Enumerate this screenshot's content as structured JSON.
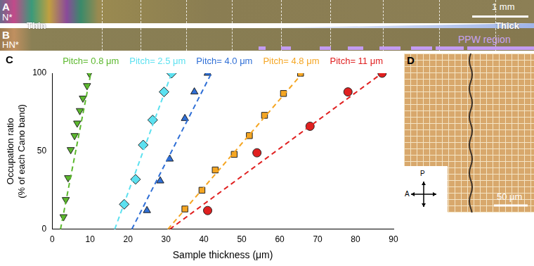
{
  "panels": {
    "A": {
      "label": "A",
      "phase": "N*",
      "scale_bar": "1 mm"
    },
    "B": {
      "label": "B",
      "phase": "HN*",
      "thin": "Thin",
      "thick": "Thick",
      "region": "PPW region"
    },
    "C": {
      "label": "C"
    },
    "D": {
      "label": "D",
      "polarizer": "P",
      "analyzer": "A",
      "scale_bar": "50 μm"
    }
  },
  "chart_data": {
    "type": "scatter",
    "x_label": "Sample thickness (μm)",
    "y_label": [
      "Occupation ratio",
      "(% of each Cano band)"
    ],
    "xlim": [
      0,
      90
    ],
    "xticks": [
      0,
      10,
      20,
      30,
      40,
      50,
      60,
      70,
      80,
      90
    ],
    "ylim": [
      0,
      100
    ],
    "yticks": [
      0,
      50,
      100
    ],
    "grid": false,
    "series": [
      {
        "name": "Pitch= 0.8 μm",
        "color": "#5cb82e",
        "marker": "triangle_down",
        "line_style": "dashed",
        "x": [
          3,
          3.6,
          4.2,
          4.9,
          5.9,
          6.6,
          7.3,
          8.1,
          9.2,
          9.8
        ],
        "values": [
          8,
          19,
          33,
          51,
          60,
          68,
          76,
          84,
          92,
          100
        ],
        "fit": {
          "x": [
            2.2,
            10.2
          ],
          "values": [
            0,
            100
          ]
        }
      },
      {
        "name": "Pitch= 2.5 μm",
        "color": "#5ce1f0",
        "marker": "diamond",
        "line_style": "dashed",
        "x": [
          19,
          22,
          24,
          26.5,
          29.5,
          31.5
        ],
        "values": [
          16,
          32,
          54,
          70,
          88,
          100
        ],
        "fit": {
          "x": [
            16.5,
            31.5
          ],
          "values": [
            0,
            100
          ]
        }
      },
      {
        "name": "Pitch= 4.0 μm",
        "color": "#2f6fd6",
        "marker": "triangle",
        "line_style": "dashed",
        "x": [
          25,
          28.5,
          31,
          35,
          37.5,
          41
        ],
        "values": [
          12,
          31,
          45,
          71,
          88,
          100
        ],
        "fit": {
          "x": [
            21,
            42
          ],
          "values": [
            0,
            100
          ]
        }
      },
      {
        "name": "Pitch= 4.8 μm",
        "color": "#f5a623",
        "marker": "square",
        "line_style": "dashed",
        "x": [
          35,
          39.5,
          43,
          48,
          52,
          56,
          61,
          65.5
        ],
        "values": [
          13,
          25,
          38,
          48,
          60,
          73,
          87,
          100
        ],
        "fit": {
          "x": [
            30.5,
            66
          ],
          "values": [
            0,
            100
          ]
        }
      },
      {
        "name": "Pitch= 11 μm",
        "color": "#e02020",
        "marker": "circle",
        "line_style": "dashed",
        "x": [
          41,
          54,
          68,
          78,
          87
        ],
        "values": [
          12,
          49,
          66,
          88,
          100
        ],
        "fit": {
          "x": [
            31,
            87
          ],
          "values": [
            0,
            100
          ]
        }
      }
    ]
  }
}
